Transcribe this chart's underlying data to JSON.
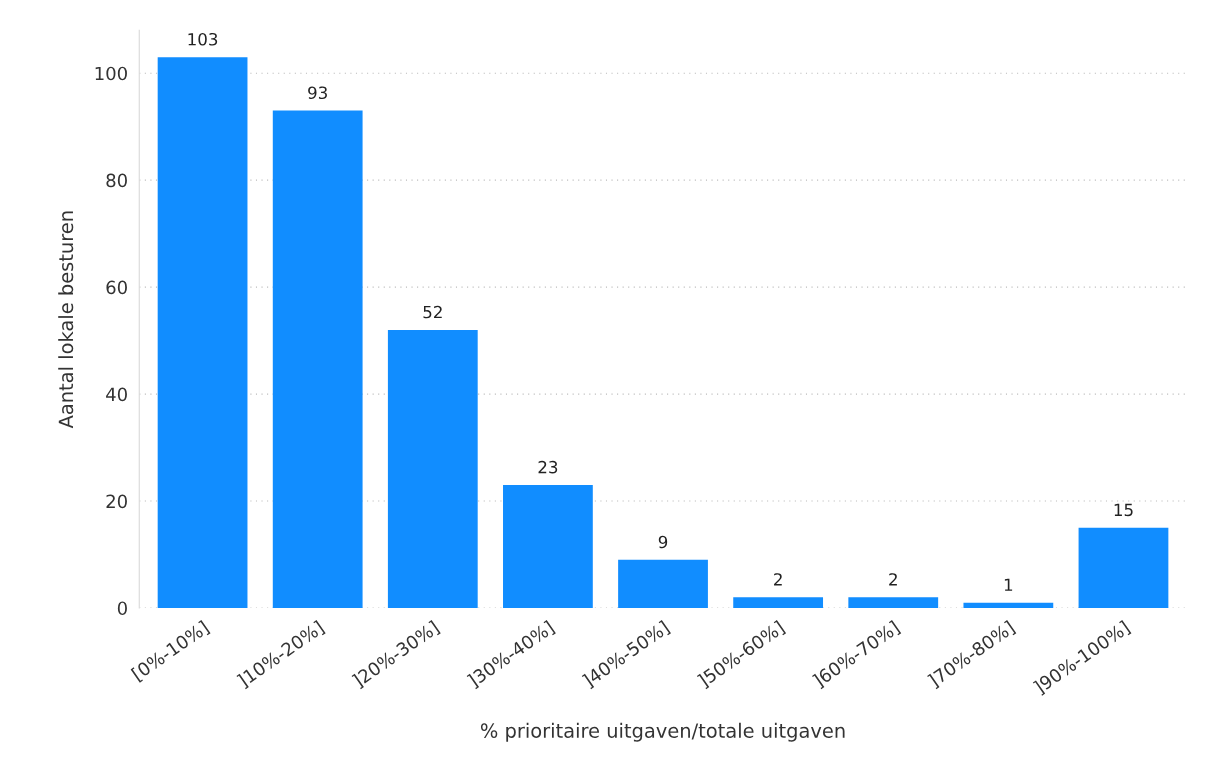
{
  "chart_data": {
    "type": "bar",
    "xlabel": "% prioritaire uitgaven/totale uitgaven",
    "ylabel": "Aantal lokale besturen",
    "categories": [
      "[0%-10%]",
      "]10%-20%]",
      "]20%-30%]",
      "]30%-40%]",
      "]40%-50%]",
      "]50%-60%]",
      "]60%-70%]",
      "]70%-80%]",
      "]90%-100%]"
    ],
    "values": [
      103,
      93,
      52,
      23,
      9,
      2,
      2,
      1,
      15
    ],
    "color": "#118dff",
    "ylim": [
      0,
      108
    ],
    "yticks": [
      0,
      20,
      40,
      60,
      80,
      100
    ],
    "grid": "y",
    "data_labels": true,
    "legend": false
  }
}
